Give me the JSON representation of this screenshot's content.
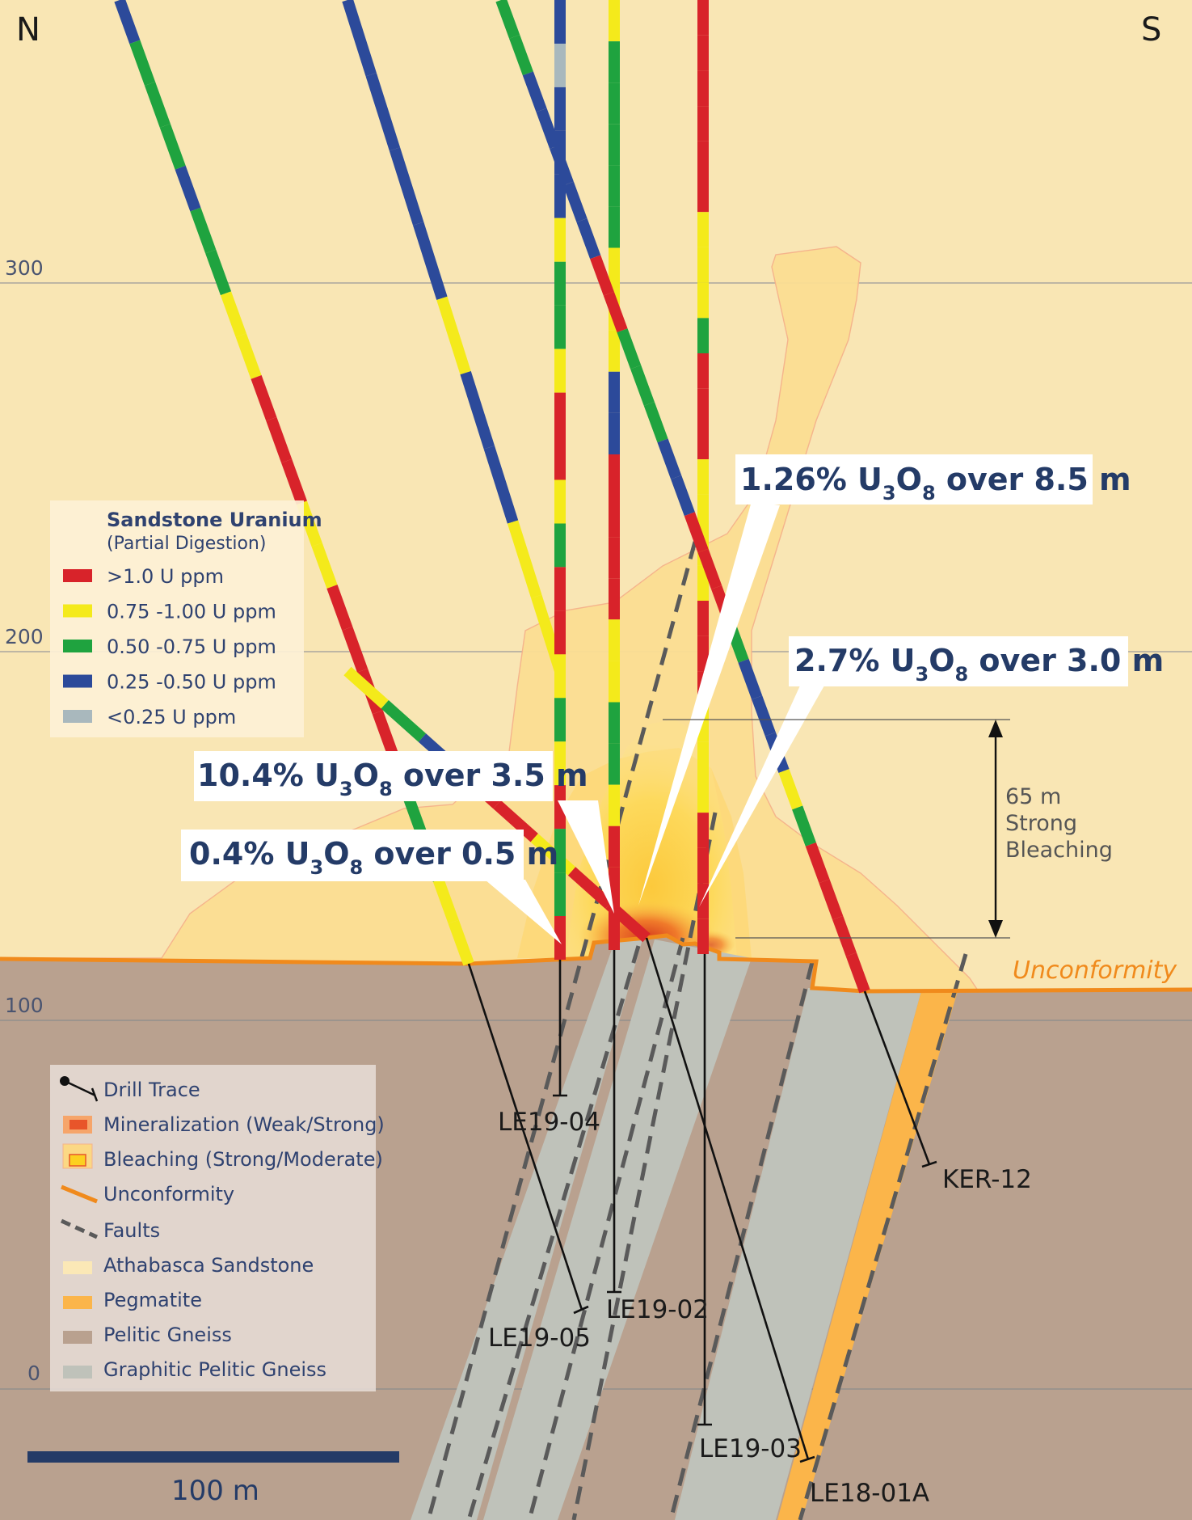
{
  "orientation": {
    "left": "N",
    "right": "S"
  },
  "elevation_ticks": [
    {
      "value": 300,
      "label": "300"
    },
    {
      "value": 200,
      "label": "200"
    },
    {
      "value": 100,
      "label": "100"
    },
    {
      "value": 0,
      "label": "0"
    }
  ],
  "scale_bar": {
    "label": "100 m"
  },
  "unconformity_label": "Unconformity",
  "bleaching_annotation": {
    "lines": [
      "65 m",
      "Strong",
      "Bleaching"
    ]
  },
  "uranium_legend": {
    "title": "Sandstone Uranium",
    "subtitle": "(Partial Digestion)",
    "items": [
      {
        "label": ">1.0 U ppm",
        "color": "#d8232a"
      },
      {
        "label": "0.75 -1.00 U ppm",
        "color": "#f4ea1b"
      },
      {
        "label": "0.50 -0.75 U ppm",
        "color": "#1fa33f"
      },
      {
        "label": "0.25 -0.50 U ppm",
        "color": "#2c4a9a"
      },
      {
        "label": "<0.25 U ppm",
        "color": "#a9b8bd"
      }
    ]
  },
  "geology_legend": {
    "items": [
      {
        "label": "Drill Trace",
        "icon": "drill-trace-icon"
      },
      {
        "label": "Mineralization (Weak/Strong)",
        "icon": "mineralization-icon",
        "color": "#e8552a"
      },
      {
        "label": "Bleaching (Strong/Moderate)",
        "icon": "bleaching-icon",
        "color": "#fbd76a"
      },
      {
        "label": "Unconformity",
        "icon": "unconformity-icon",
        "color": "#f08a1c"
      },
      {
        "label": "Faults",
        "icon": "fault-icon",
        "color": "#5a5a5a"
      },
      {
        "label": "Athabasca Sandstone",
        "icon": "sandstone-swatch",
        "color": "#fbe8b6"
      },
      {
        "label": "Pegmatite",
        "icon": "pegmatite-swatch",
        "color": "#fbb54a"
      },
      {
        "label": "Pelitic Gneiss",
        "icon": "pelitic-gneiss-swatch",
        "color": "#b9a18f"
      },
      {
        "label": "Graphitic Pelitic Gneiss",
        "icon": "graphitic-gneiss-swatch",
        "color": "#bfc2ba"
      }
    ]
  },
  "callouts": [
    {
      "id": "c1",
      "prefix": "1.26% U",
      "sub1": "3",
      "mid": "O",
      "sub2": "8",
      "suffix": " over 8.5 m"
    },
    {
      "id": "c2",
      "prefix": "2.7% U",
      "sub1": "3",
      "mid": "O",
      "sub2": "8",
      "suffix": " over 3.0 m"
    },
    {
      "id": "c3",
      "prefix": "10.4% U",
      "sub1": "3",
      "mid": "O",
      "sub2": "8",
      "suffix": " over 3.5 m"
    },
    {
      "id": "c4",
      "prefix": "0.4% U",
      "sub1": "3",
      "mid": "O",
      "sub2": "8",
      "suffix": " over 0.5 m"
    }
  ],
  "drill_holes": [
    {
      "name": "LE19-04"
    },
    {
      "name": "LE19-05"
    },
    {
      "name": "LE19-02"
    },
    {
      "name": "LE19-03"
    },
    {
      "name": "LE18-01A"
    },
    {
      "name": "KER-12"
    }
  ],
  "colors": {
    "sandstone": "#f9e6b4",
    "pelitic_gneiss": "#b9a18f",
    "graphitic_gneiss": "#bfc2ba",
    "pegmatite": "#fbb54a",
    "bleaching_moderate": "#fbd884",
    "bleaching_strong": "#fcd860",
    "mineralization": "#e8552a",
    "unconformity": "#f08a1c",
    "callout_text": "#243b67",
    "scale_bar": "#243b67"
  }
}
